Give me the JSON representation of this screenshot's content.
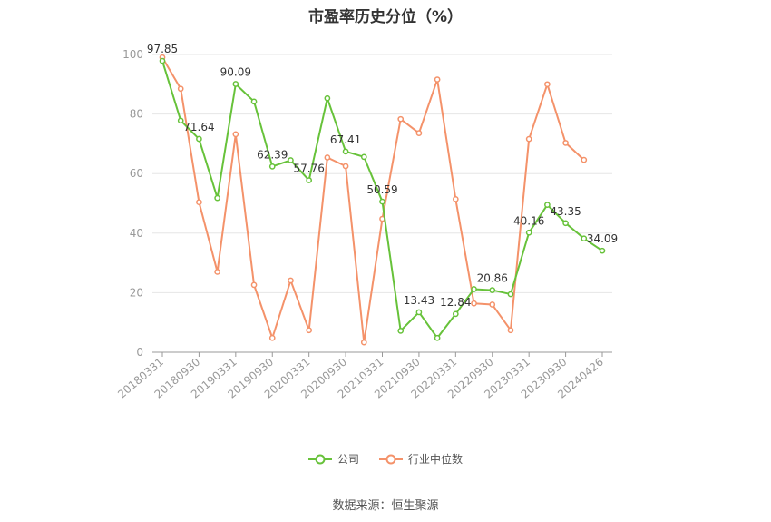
{
  "source_text": "数据来源：恒生聚源",
  "chart_data": {
    "type": "line",
    "title": "市盈率历史分位（%）",
    "ylim": [
      0,
      100
    ],
    "y_ticks": [
      0,
      20,
      40,
      60,
      80,
      100
    ],
    "grid": "horizontal",
    "legend_position": "bottom",
    "x_tick_labels": [
      "20180331",
      "20180930",
      "20190331",
      "20190930",
      "20200331",
      "20200930",
      "20210331",
      "20210930",
      "20220331",
      "20220930",
      "20230331",
      "20230930",
      "20240426"
    ],
    "x": [
      "20180331",
      "20180630",
      "20180930",
      "20181231",
      "20190331",
      "20190630",
      "20190930",
      "20191231",
      "20200331",
      "20200630",
      "20200930",
      "20201231",
      "20210331",
      "20210630",
      "20210930",
      "20211231",
      "20220331",
      "20220630",
      "20220930",
      "20221231",
      "20230331",
      "20230630",
      "20230930",
      "20231231",
      "20240426"
    ],
    "series": [
      {
        "name": "公司",
        "color": "#67c23a",
        "values": [
          97.85,
          77.8,
          71.64,
          51.8,
          90.09,
          84.2,
          62.39,
          64.5,
          57.76,
          85.3,
          67.41,
          65.6,
          50.59,
          7.2,
          13.43,
          4.8,
          12.84,
          21.2,
          20.86,
          19.5,
          40.16,
          49.5,
          43.35,
          38.2,
          34.09
        ],
        "labels": {
          "0": "97.85",
          "2": "71.64",
          "4": "90.09",
          "6": "62.39",
          "8": "57.76",
          "10": "67.41",
          "12": "50.59",
          "14": "13.43",
          "16": "12.84",
          "18": "20.86",
          "20": "40.16",
          "22": "43.35",
          "24": "34.09"
        }
      },
      {
        "name": "行业中位数",
        "color": "#f4926a",
        "values": [
          99.0,
          88.5,
          50.4,
          27.0,
          73.2,
          22.6,
          4.8,
          24.1,
          7.4,
          65.4,
          62.5,
          3.3,
          44.8,
          78.3,
          73.6,
          91.6,
          51.4,
          16.4,
          16.0,
          7.4,
          71.6,
          90.0,
          70.3,
          64.6,
          null
        ]
      }
    ]
  }
}
